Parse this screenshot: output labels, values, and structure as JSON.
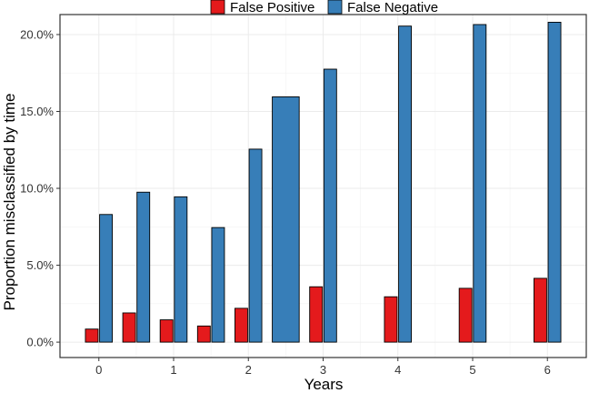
{
  "chart_data": {
    "type": "bar",
    "xlabel": "Years",
    "ylabel": "Proportion misclassified by time",
    "ylim": [
      -0.01,
      0.213
    ],
    "y_ticks": [
      0,
      0.05,
      0.1,
      0.15,
      0.2
    ],
    "y_tick_labels": [
      "0.0%",
      "5.0%",
      "10.0%",
      "15.0%",
      "20.0%"
    ],
    "xlim": [
      -0.52,
      6.52
    ],
    "x_ticks": [
      0,
      1,
      2,
      3,
      4,
      5,
      6
    ],
    "x_tick_labels": [
      "0",
      "1",
      "2",
      "3",
      "4",
      "5",
      "6"
    ],
    "grid": true,
    "legend_position": "top",
    "series": [
      {
        "name": "False Positive",
        "color": "#E41A1C",
        "points": [
          {
            "x": 0,
            "y": 0.0085
          },
          {
            "x": 0.5,
            "y": 0.019
          },
          {
            "x": 1,
            "y": 0.0145
          },
          {
            "x": 1.5,
            "y": 0.0105
          },
          {
            "x": 2,
            "y": 0.022
          },
          {
            "x": 3,
            "y": 0.036
          },
          {
            "x": 4,
            "y": 0.0295
          },
          {
            "x": 5,
            "y": 0.035
          },
          {
            "x": 6,
            "y": 0.0415
          }
        ]
      },
      {
        "name": "False Negative",
        "color": "#377EB8",
        "points": [
          {
            "x": 0,
            "y": 0.083
          },
          {
            "x": 0.5,
            "y": 0.0975
          },
          {
            "x": 1,
            "y": 0.0945
          },
          {
            "x": 1.5,
            "y": 0.0745
          },
          {
            "x": 2,
            "y": 0.1255
          },
          {
            "x": 2.5,
            "y": 0.1595
          },
          {
            "x": 3,
            "y": 0.1775
          },
          {
            "x": 4,
            "y": 0.2055
          },
          {
            "x": 5,
            "y": 0.2065
          },
          {
            "x": 6,
            "y": 0.208
          }
        ]
      }
    ]
  }
}
